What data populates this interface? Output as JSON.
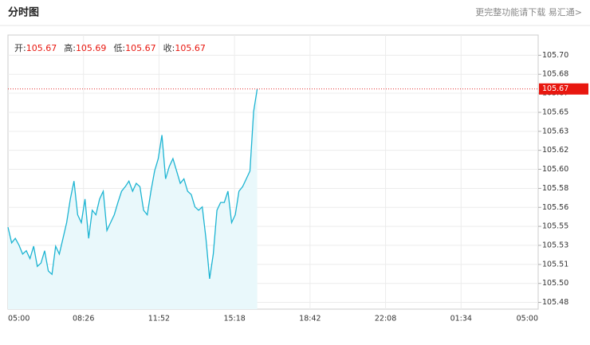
{
  "header": {
    "title": "分时图",
    "link": "更完整功能请下载 易汇通>"
  },
  "chart_data": {
    "type": "line",
    "quote": [
      {
        "label": "开:",
        "value": 105.67
      },
      {
        "label": "高:",
        "value": 105.69
      },
      {
        "label": "低:",
        "value": 105.67
      },
      {
        "label": "收:",
        "value": 105.67
      }
    ],
    "current_price": 105.67,
    "xticks": [
      "05:00",
      "08:26",
      "11:52",
      "15:18",
      "18:42",
      "22:08",
      "01:34",
      "05:00"
    ],
    "ylim": [
      105.474,
      105.718
    ],
    "yticks": [
      {
        "value": 105.48,
        "label": "105.48"
      },
      {
        "value": 105.4969,
        "label": "105.50"
      },
      {
        "value": 105.5138,
        "label": "105.51"
      },
      {
        "value": 105.5308,
        "label": "105.53"
      },
      {
        "value": 105.5477,
        "label": "105.55"
      },
      {
        "value": 105.5646,
        "label": "105.56"
      },
      {
        "value": 105.5815,
        "label": "105.58"
      },
      {
        "value": 105.5985,
        "label": "105.60"
      },
      {
        "value": 105.6154,
        "label": "105.62"
      },
      {
        "value": 105.6323,
        "label": "105.63"
      },
      {
        "value": 105.6492,
        "label": "105.65"
      },
      {
        "value": 105.6662,
        "label": "105.67"
      },
      {
        "value": 105.6831,
        "label": "105.68"
      },
      {
        "value": 105.7,
        "label": "105.70"
      }
    ],
    "grid": true,
    "x": [
      "05:00",
      "05:10",
      "05:20",
      "05:30",
      "05:40",
      "05:50",
      "06:00",
      "06:10",
      "06:20",
      "06:30",
      "06:40",
      "06:50",
      "07:00",
      "07:10",
      "07:20",
      "07:30",
      "07:40",
      "07:50",
      "08:00",
      "08:10",
      "08:20",
      "08:30",
      "08:40",
      "08:50",
      "09:00",
      "09:10",
      "09:20",
      "09:30",
      "09:40",
      "09:50",
      "10:00",
      "10:10",
      "10:20",
      "10:30",
      "10:40",
      "10:50",
      "11:00",
      "11:10",
      "11:20",
      "11:30",
      "11:40",
      "11:50",
      "12:00",
      "12:10",
      "12:20",
      "12:30",
      "12:40",
      "12:50",
      "13:00",
      "13:10",
      "13:20",
      "13:30",
      "13:40",
      "13:50",
      "14:00",
      "14:10",
      "14:20",
      "14:30",
      "14:40",
      "14:50",
      "15:00",
      "15:10",
      "15:20",
      "15:30",
      "15:40",
      "15:50",
      "16:00",
      "16:10",
      "16:20"
    ],
    "series": [
      {
        "color": "#1cb4d2",
        "fill": "#e9f8fb",
        "values": [
          105.547,
          105.533,
          105.537,
          105.531,
          105.523,
          105.526,
          105.519,
          105.53,
          105.512,
          105.515,
          105.526,
          105.508,
          105.505,
          105.53,
          105.523,
          105.537,
          105.551,
          105.572,
          105.588,
          105.558,
          105.551,
          105.572,
          105.537,
          105.562,
          105.558,
          105.572,
          105.579,
          105.544,
          105.551,
          105.558,
          105.569,
          105.579,
          105.583,
          105.588,
          105.579,
          105.586,
          105.583,
          105.562,
          105.558,
          105.579,
          105.597,
          105.608,
          105.629,
          105.59,
          105.601,
          105.608,
          105.597,
          105.586,
          105.59,
          105.579,
          105.576,
          105.565,
          105.562,
          105.565,
          105.537,
          105.501,
          105.523,
          105.562,
          105.569,
          105.569,
          105.579,
          105.551,
          105.558,
          105.579,
          105.583,
          105.59,
          105.597,
          105.65,
          105.67
        ]
      }
    ]
  }
}
